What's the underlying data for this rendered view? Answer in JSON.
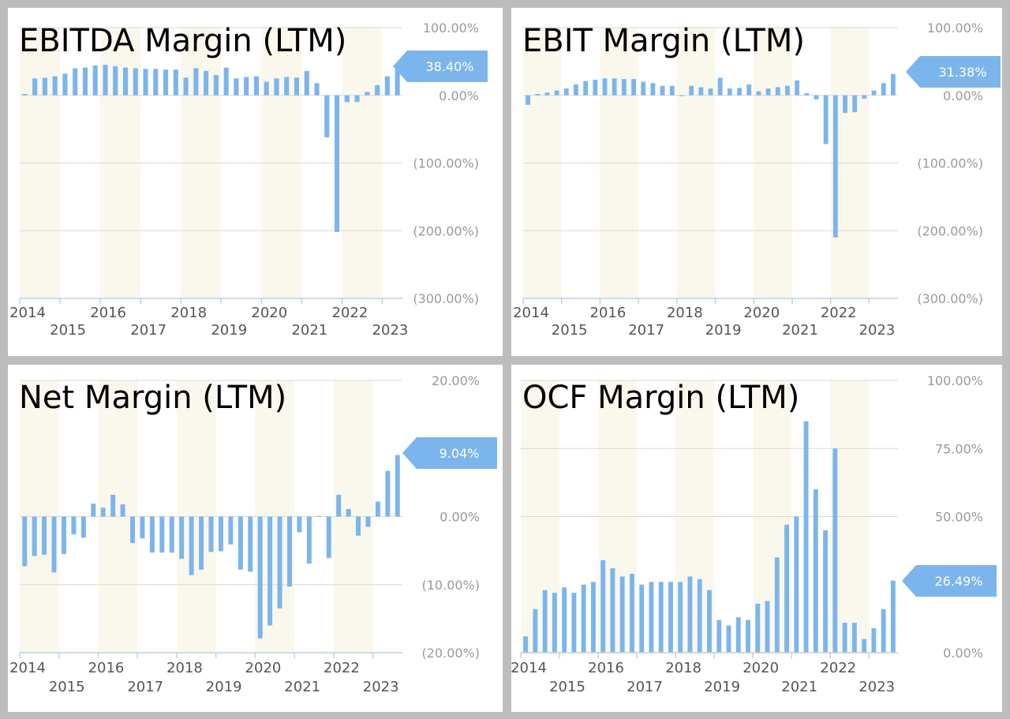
{
  "colors": {
    "bar": "#7cb5ec",
    "band": "#faf7ec",
    "grid": "#d8d8d8",
    "axis": "#c0d0e0",
    "badge": "#7cb5ec"
  },
  "chart_data": [
    {
      "type": "bar",
      "title": "EBITDA Margin (LTM)",
      "ylim": [
        -300,
        100
      ],
      "y_ticks": [
        100,
        0,
        -100,
        -200,
        -300
      ],
      "y_tick_labels": [
        "100.00%",
        "0.00%",
        "(100.00%)",
        "(200.00%)",
        "(300.00%)"
      ],
      "x_top_labels": [
        "2014",
        "2016",
        "2018",
        "2020",
        "2022"
      ],
      "x_bottom_labels": [
        "2015",
        "2017",
        "2019",
        "2021",
        "2023"
      ],
      "last_value_label": "38.40%",
      "grid": true,
      "values": [
        2,
        25,
        26,
        28,
        32,
        40,
        41,
        44,
        45,
        43,
        41,
        40,
        39,
        39,
        38,
        38,
        26,
        40,
        36,
        30,
        41,
        25,
        27,
        28,
        20,
        25,
        27,
        26,
        36,
        18,
        -62,
        -202,
        -10,
        -10,
        5,
        15,
        28,
        38.4
      ]
    },
    {
      "type": "bar",
      "title": "EBIT Margin (LTM)",
      "ylim": [
        -300,
        100
      ],
      "y_ticks": [
        100,
        0,
        -100,
        -200,
        -300
      ],
      "y_tick_labels": [
        "100.00%",
        "0.00%",
        "(100.00%)",
        "(200.00%)",
        "(300.00%)"
      ],
      "x_top_labels": [
        "2014",
        "2016",
        "2018",
        "2020",
        "2022"
      ],
      "x_bottom_labels": [
        "2015",
        "2017",
        "2019",
        "2021",
        "2023"
      ],
      "last_value_label": "31.38%",
      "grid": true,
      "values": [
        -14,
        2,
        4,
        7,
        10,
        16,
        21,
        23,
        25,
        25,
        24,
        24,
        20,
        18,
        14,
        14,
        0,
        14,
        12,
        10,
        26,
        10,
        11,
        16,
        6,
        10,
        12,
        14,
        22,
        3,
        -6,
        -72,
        -210,
        -26,
        -25,
        -5,
        7,
        18,
        31.38
      ]
    },
    {
      "type": "bar",
      "title": "Net Margin (LTM)",
      "ylim": [
        -20,
        20
      ],
      "y_ticks": [
        20,
        0,
        -10,
        -20
      ],
      "y_tick_labels": [
        "20.00%",
        "0.00%",
        "(10.00%)",
        "(20.00%)"
      ],
      "x_top_labels": [
        "2014",
        "2016",
        "2018",
        "2020",
        "2022"
      ],
      "x_bottom_labels": [
        "2015",
        "2017",
        "2019",
        "2021",
        "2023"
      ],
      "last_value_label": "9.04%",
      "grid": true,
      "values": [
        -7.3,
        -5.8,
        -5.6,
        -8.2,
        -5.5,
        -2.6,
        -3.1,
        1.9,
        1.3,
        3.2,
        1.8,
        -3.9,
        -3.2,
        -5.3,
        -5.3,
        -5.3,
        -6.2,
        -8.6,
        -7.8,
        -5.2,
        -5.1,
        -4.1,
        -7.8,
        -8.1,
        -17.9,
        -16,
        -13.5,
        -10.3,
        -2.3,
        -6.9,
        0.1,
        -6.1,
        3.2,
        1.1,
        -2.8,
        -1.5,
        2.2,
        6.7,
        9.04
      ]
    },
    {
      "type": "bar",
      "title": "OCF Margin (LTM)",
      "ylim": [
        0,
        100
      ],
      "y_ticks": [
        100,
        75,
        50,
        0
      ],
      "y_tick_labels": [
        "100.00%",
        "75.00%",
        "50.00%",
        "0.00%"
      ],
      "x_top_labels": [
        "2014",
        "2016",
        "2018",
        "2020",
        "2022"
      ],
      "x_bottom_labels": [
        "2015",
        "2017",
        "2019",
        "2021",
        "2023"
      ],
      "last_value_label": "26.49%",
      "grid": true,
      "values": [
        6,
        16,
        23,
        22,
        24,
        22,
        25,
        26,
        34,
        31,
        28,
        29,
        25,
        26,
        26,
        26,
        26,
        28,
        27,
        23,
        12,
        10,
        13,
        12,
        18,
        19,
        35,
        47,
        50,
        85,
        60,
        45,
        75,
        11,
        11,
        5,
        9,
        16,
        26.49
      ]
    }
  ]
}
